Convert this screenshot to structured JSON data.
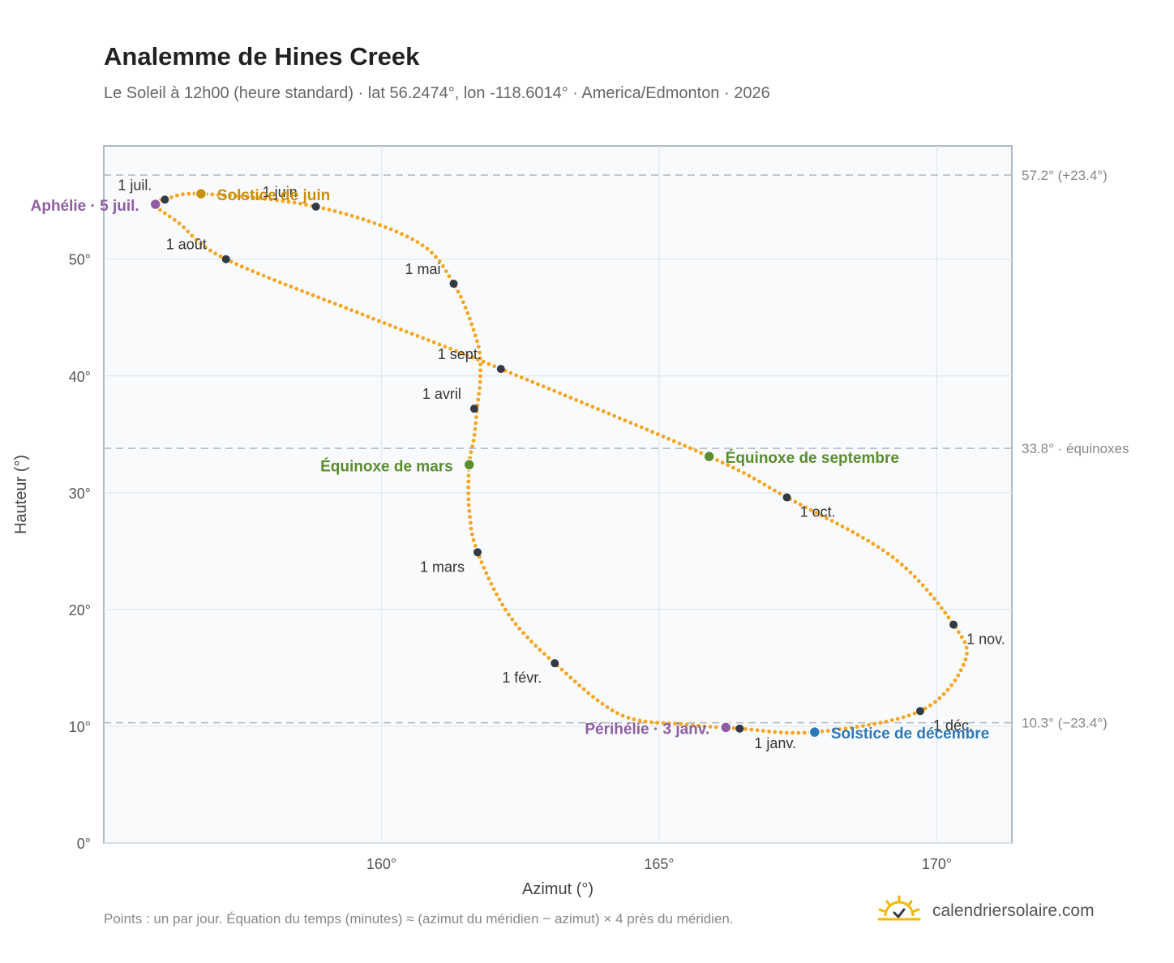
{
  "header": {
    "title": "Analemme de Hines Creek",
    "subtitle": "Le Soleil à 12h00 (heure standard) · lat 56.2474°, lon -118.6014° · America/Edmonton · 2026"
  },
  "footer": {
    "note": "Points : un par jour. Équation du temps (minutes) ≈ (azimut du méridien − azimut) × 4 près du méridien.",
    "brand": "calendriersolaire.com"
  },
  "colors": {
    "curve": "#f5a623",
    "month_marker": "#333a45",
    "aphelion": "#8e5ea2",
    "perihelion": "#8e5ea2",
    "june_solstice": "#c8900a",
    "december_solstice": "#2f78b8",
    "equinox": "#5b8c2e",
    "plot_bg": "#f8fafc",
    "grid": "#e2e8f0",
    "reference_line": "#b0b7c0",
    "brand_icon": "#f5b800"
  },
  "chart_data": {
    "type": "scatter",
    "xlabel": "Azimut (°)",
    "ylabel": "Hauteur (°)",
    "xlim": [
      155.0,
      171.35
    ],
    "ylim": [
      0,
      59.7
    ],
    "x_ticks": [
      160,
      165,
      170
    ],
    "x_tick_labels": [
      "160°",
      "165°",
      "170°"
    ],
    "y_ticks": [
      0,
      10,
      20,
      30,
      40,
      50
    ],
    "y_tick_labels": [
      "0°",
      "10°",
      "20°",
      "30°",
      "40°",
      "50°"
    ],
    "grid": true,
    "reference_lines": [
      {
        "y": 57.2,
        "label": "57.2° (+23.4°)"
      },
      {
        "y": 33.8,
        "label": "33.8° · équinoxes"
      },
      {
        "y": 10.3,
        "label": "10.3° (−23.4°)"
      }
    ],
    "series": [
      {
        "kind": "daily_points",
        "path_nodes": [
          [
            166.45,
            9.8
          ],
          [
            165.5,
            10.15
          ],
          [
            164.3,
            11.0
          ],
          [
            163.12,
            15.4
          ],
          [
            162.3,
            19.5
          ],
          [
            161.73,
            24.9
          ],
          [
            161.58,
            28.5
          ],
          [
            161.58,
            32.4
          ],
          [
            161.67,
            34.8
          ],
          [
            161.72,
            37.2
          ],
          [
            161.78,
            40.0
          ],
          [
            161.72,
            43.0
          ],
          [
            161.3,
            47.9
          ],
          [
            160.6,
            51.6
          ],
          [
            158.82,
            54.5
          ],
          [
            156.75,
            55.6
          ],
          [
            156.1,
            55.1
          ],
          [
            155.9,
            54.7
          ],
          [
            156.35,
            53.1
          ],
          [
            157.2,
            50.0
          ],
          [
            159.8,
            45.0
          ],
          [
            162.15,
            40.6
          ],
          [
            165.9,
            33.1
          ],
          [
            167.3,
            29.6
          ],
          [
            169.2,
            24.5
          ],
          [
            170.3,
            18.7
          ],
          [
            170.5,
            15.5
          ],
          [
            169.7,
            11.3
          ],
          [
            167.8,
            9.5
          ],
          [
            166.45,
            9.8
          ]
        ]
      },
      {
        "kind": "month_markers",
        "points": [
          {
            "label": "1 janv.",
            "x": 166.45,
            "y": 9.8
          },
          {
            "label": "1 févr.",
            "x": 163.12,
            "y": 15.4
          },
          {
            "label": "1 mars",
            "x": 161.73,
            "y": 24.9
          },
          {
            "label": "1 avril",
            "x": 161.67,
            "y": 37.2
          },
          {
            "label": "1 mai",
            "x": 161.3,
            "y": 47.9
          },
          {
            "label": "1 juin",
            "x": 158.82,
            "y": 54.5
          },
          {
            "label": "1 juil.",
            "x": 156.1,
            "y": 55.1
          },
          {
            "label": "1 août",
            "x": 157.2,
            "y": 50.0
          },
          {
            "label": "1 sept.",
            "x": 162.15,
            "y": 40.6
          },
          {
            "label": "1 oct.",
            "x": 167.3,
            "y": 29.6
          },
          {
            "label": "1 nov.",
            "x": 170.3,
            "y": 18.7
          },
          {
            "label": "1 déc.",
            "x": 169.7,
            "y": 11.3
          }
        ]
      },
      {
        "kind": "events",
        "points": [
          {
            "label": "Aphélie · 5 juil.",
            "x": 155.93,
            "y": 54.7,
            "color_key": "aphelion"
          },
          {
            "label": "Solstice de juin",
            "x": 156.75,
            "y": 55.6,
            "color_key": "june_solstice"
          },
          {
            "label": "Équinoxe de mars",
            "x": 161.58,
            "y": 32.4,
            "color_key": "equinox"
          },
          {
            "label": "Équinoxe de septembre",
            "x": 165.9,
            "y": 33.1,
            "color_key": "equinox"
          },
          {
            "label": "Périhélie · 3 janv.",
            "x": 166.2,
            "y": 9.9,
            "color_key": "perihelion"
          },
          {
            "label": "Solstice de décembre",
            "x": 167.8,
            "y": 9.5,
            "color_key": "december_solstice"
          }
        ]
      }
    ]
  }
}
